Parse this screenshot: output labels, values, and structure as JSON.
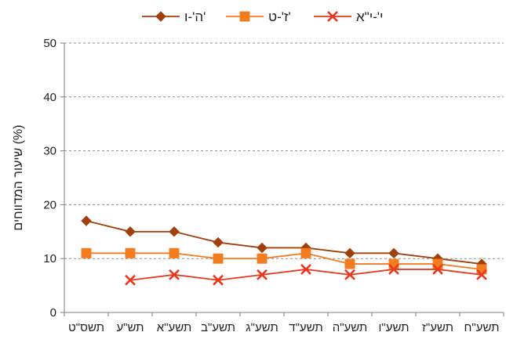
{
  "chart_data": {
    "type": "line",
    "ylabel": "שיעור המדווחים (%)",
    "ylim": [
      0,
      50
    ],
    "yticks": [
      0,
      10,
      20,
      30,
      40,
      50
    ],
    "grid": "horizontal dashed",
    "legend_position": "top",
    "categories": [
      "תשס\"ט",
      "תש\"ע",
      "תשע\"א",
      "תשע\"ב",
      "תשע\"ג",
      "תשע\"ד",
      "תשע\"ה",
      "תשע\"ו",
      "תשע\"ז",
      "תשע\"ח"
    ],
    "series": [
      {
        "name": "ה'-ו'",
        "marker": "diamond",
        "color": "#A0410D",
        "values": [
          17,
          15,
          15,
          13,
          12,
          12,
          11,
          11,
          10,
          9
        ]
      },
      {
        "name": "ז'-ט'",
        "marker": "square",
        "color": "#F47C20",
        "values": [
          11,
          11,
          11,
          10,
          10,
          11,
          9,
          9,
          9,
          8
        ]
      },
      {
        "name": "י'-י\"א",
        "marker": "x",
        "color": "#E8381E",
        "values": [
          null,
          6,
          7,
          6,
          7,
          8,
          7,
          8,
          8,
          7
        ]
      }
    ]
  }
}
